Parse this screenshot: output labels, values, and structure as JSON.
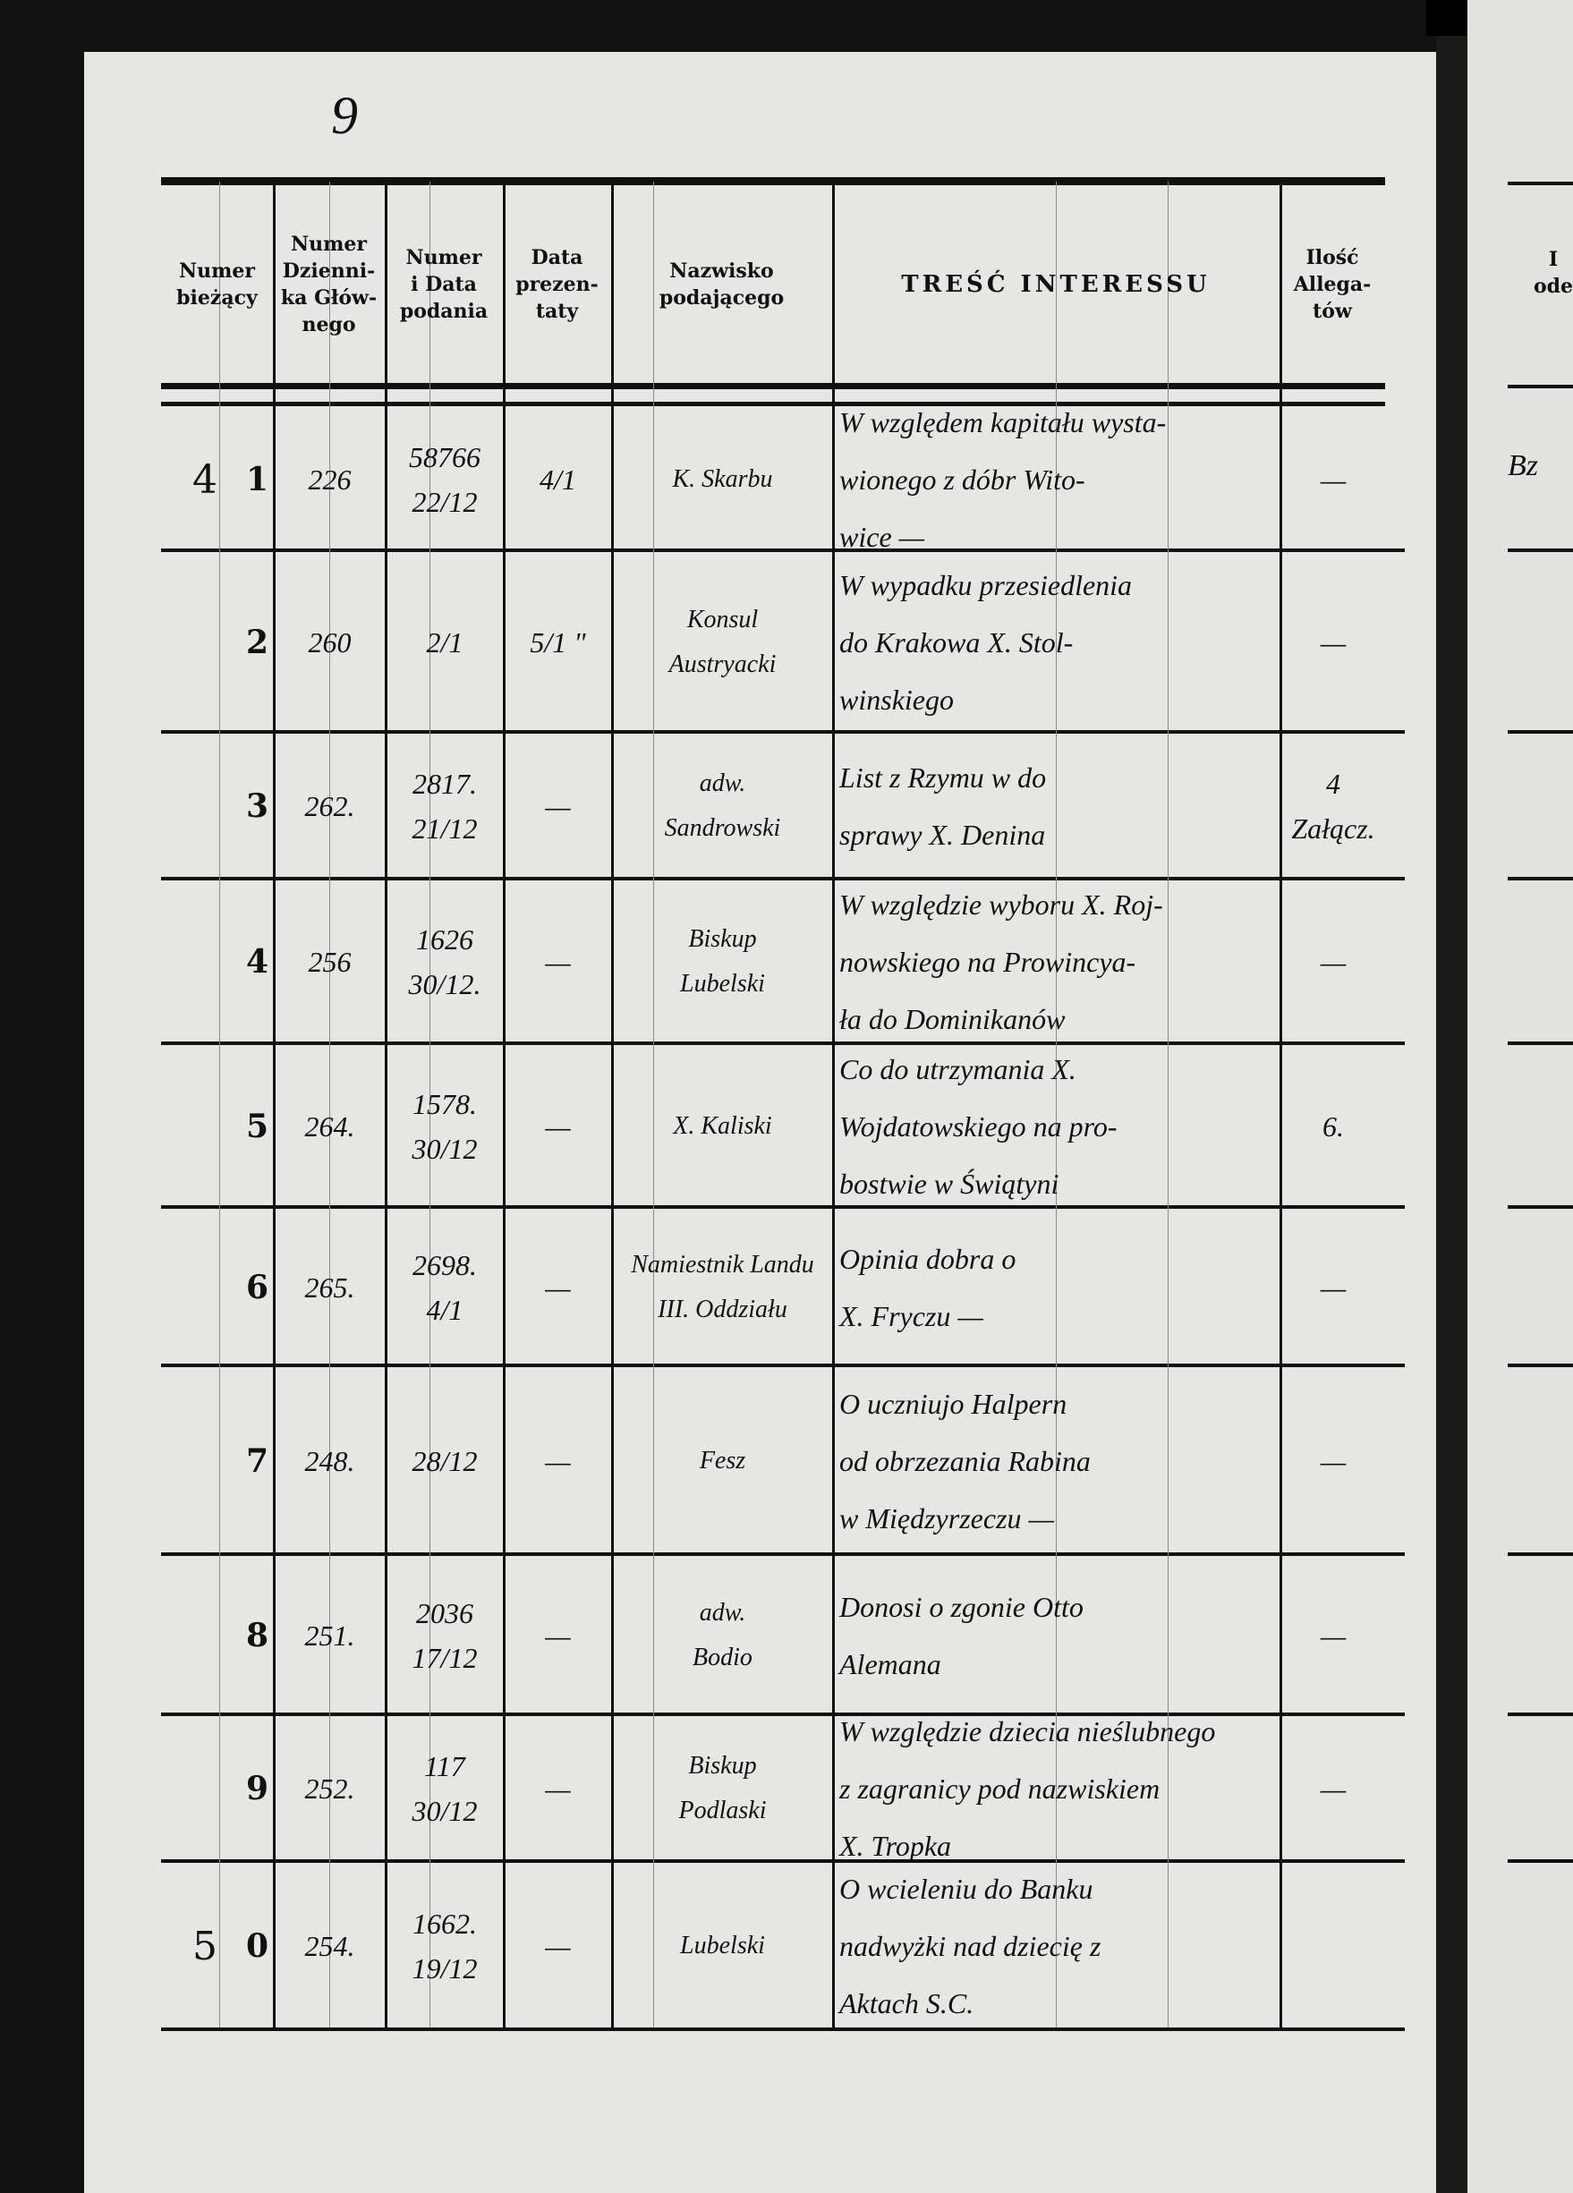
{
  "page_number": "9",
  "headers": [
    "Numer\nbieżący",
    "Numer\nDzienni-\nka Głów-\nnego",
    "Numer\ni Data\npodania",
    "Data\nprezen-\ntaty",
    "Nazwisko\npodającego",
    "TREŚĆ INTERESSU",
    "Ilość\nAllega-\ntów"
  ],
  "rows": [
    {
      "margin": "4",
      "num": "1",
      "dziennik": "226",
      "numer_data": "58766\n22/12",
      "prezentaty": "4/1",
      "nazwisko": "K. Skarbu",
      "tresc": "W względem kapitału wysta-\nwionego z dóbr Wito-\nwice —",
      "allegaty": "—"
    },
    {
      "margin": "",
      "num": "2",
      "dziennik": "260",
      "numer_data": "2/1",
      "prezentaty": "5/1 \"",
      "nazwisko": "Konsul\nAustryacki",
      "tresc": "W wypadku przesiedlenia\ndo Krakowa X. Stol-\nwinskiego",
      "allegaty": "—"
    },
    {
      "margin": "",
      "num": "3",
      "dziennik": "262.",
      "numer_data": "2817.\n21/12",
      "prezentaty": "—",
      "nazwisko": "adw.\nSandrowski",
      "tresc": "List z Rzymu w do\nsprawy X. Denina",
      "allegaty": "4 Załącz."
    },
    {
      "margin": "",
      "num": "4",
      "dziennik": "256",
      "numer_data": "1626\n30/12.",
      "prezentaty": "—",
      "nazwisko": "Biskup\nLubelski",
      "tresc": "W względzie wyboru X. Roj-\nnowskiego na Prowincya-\nła do Dominikanów",
      "allegaty": "—"
    },
    {
      "margin": "",
      "num": "5",
      "dziennik": "264.",
      "numer_data": "1578.\n30/12",
      "prezentaty": "—",
      "nazwisko": "X. Kaliski",
      "tresc": "Co do utrzymania X.\nWojdatowskiego na pro-\nbostwie w Świątyni",
      "allegaty": "6."
    },
    {
      "margin": "",
      "num": "6",
      "dziennik": "265.",
      "numer_data": "2698.\n4/1",
      "prezentaty": "—",
      "nazwisko": "Namiestnik Landu\nIII. Oddziału",
      "tresc": "Opinia dobra o\nX. Fryczu —",
      "allegaty": "—"
    },
    {
      "margin": "",
      "num": "7",
      "dziennik": "248.",
      "numer_data": "28/12",
      "prezentaty": "—",
      "nazwisko": "Fesz",
      "tresc": "O uczniujo Halpern\nod obrzezania Rabina\nw Międzyrzeczu —",
      "allegaty": "—"
    },
    {
      "margin": "",
      "num": "8",
      "dziennik": "251.",
      "numer_data": "2036\n17/12",
      "prezentaty": "—",
      "nazwisko": "adw.\nBodio",
      "tresc": "Donosi o zgonie Otto\nAlemana",
      "allegaty": "—"
    },
    {
      "margin": "",
      "num": "9",
      "dziennik": "252.",
      "numer_data": "117\n30/12",
      "prezentaty": "—",
      "nazwisko": "Biskup\nPodlaski",
      "tresc": "W względzie dziecia nieślubnego\nz zagranicy pod nazwiskiem\nX. Tropka",
      "allegaty": "—"
    },
    {
      "margin": "5",
      "num": "0",
      "dziennik": "254.",
      "numer_data": "1662.\n19/12",
      "prezentaty": "—",
      "nazwisko": "Lubelski",
      "tresc": "O wcieleniu do Banku\nnadwyżki nad dziecię z\nAktach S.C.",
      "allegaty": ""
    }
  ],
  "next_page": {
    "header": "I\node",
    "first_cell": "Bz"
  }
}
